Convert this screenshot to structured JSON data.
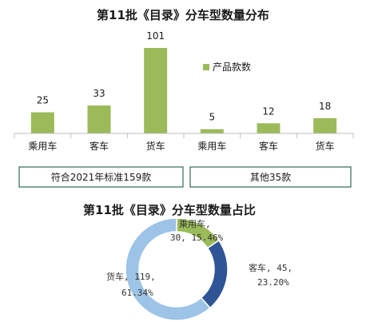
{
  "chart_data": [
    {
      "type": "bar",
      "title": "第11批《目录》分车型数量分布",
      "categories": [
        "乘用车",
        "客车",
        "货车",
        "乘用车",
        "客车",
        "货车"
      ],
      "series": [
        {
          "name": "产品款数",
          "values": [
            25,
            33,
            101,
            5,
            12,
            18
          ]
        }
      ],
      "groups": [
        {
          "label": "符合2021年标准159款"
        },
        {
          "label": "其他35款"
        }
      ],
      "xlabel": "",
      "ylabel": "",
      "ylim": [
        0,
        110
      ],
      "grid": false,
      "legend": "top-right",
      "color": "#9bbb59"
    },
    {
      "type": "pie",
      "title": "第11批《目录》分车型数量占比",
      "donut": true,
      "slices": [
        {
          "label": "乘用车",
          "value": 30,
          "percent": "15.46%",
          "color": "#9bbb59"
        },
        {
          "label": "客车",
          "value": 45,
          "percent": "23.20%",
          "color": "#2f5597"
        },
        {
          "label": "货车",
          "value": 119,
          "percent": "61.34%",
          "color": "#9dc3e6"
        }
      ],
      "labels": [
        {
          "line1": "乘用车,",
          "line2": "30, 15.46%"
        },
        {
          "line1": "客车, 45,",
          "line2": "23.20%"
        },
        {
          "line1": "货车, 119,",
          "line2": "61.34%"
        }
      ]
    }
  ]
}
